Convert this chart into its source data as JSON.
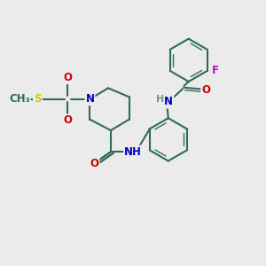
{
  "bg_color": "#ebebeb",
  "bond_color": "#2d6b5e",
  "bond_width": 1.5,
  "atom_colors": {
    "N": "#0000cc",
    "O": "#cc0000",
    "F": "#cc00cc",
    "S": "#cccc00",
    "H": "#6a9a8a",
    "C": "#2d6b5e"
  },
  "font_size": 8.5
}
